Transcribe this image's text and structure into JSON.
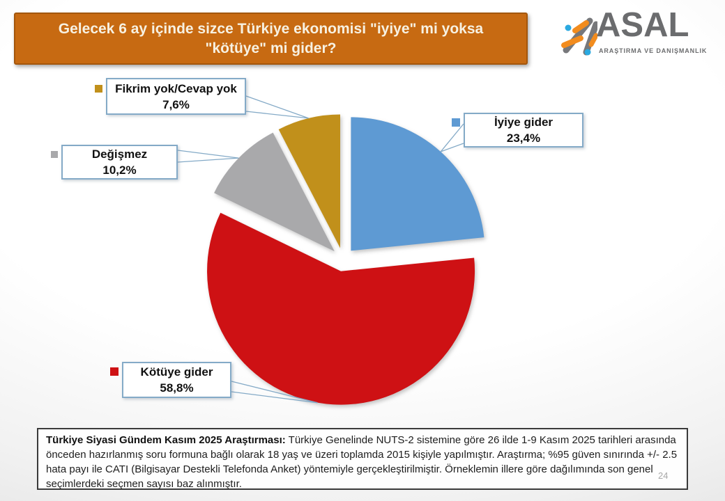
{
  "slide": {
    "title": "Gelecek 6 ay içinde sizce Türkiye ekonomisi \"iyiye\" mi yoksa \"kötüye\" mi gider?",
    "page_number": "24"
  },
  "logo": {
    "name": "ASAL",
    "subtitle": "ARAŞTIRMA VE DANIŞMANLIK",
    "colors": {
      "text_gray": "#6b6c6e",
      "mark_orange": "#f28c1e",
      "mark_blue": "#2ba9e0",
      "mark_gray": "#77787b"
    }
  },
  "chart_data": {
    "type": "pie",
    "title": "Gelecek 6 ay içinde sizce Türkiye ekonomisi \"iyiye\" mi yoksa \"kötüye\" mi gider?",
    "labels": [
      "İyiye gider",
      "Kötüye gider",
      "Değişmez",
      "Fikrim yok/Cevap yok"
    ],
    "values": [
      23.4,
      58.8,
      10.2,
      7.6
    ],
    "value_labels": [
      "23,4%",
      "58,8%",
      "10,2%",
      "7,6%"
    ],
    "colors": [
      "#5e9ad3",
      "#ce1114",
      "#a9a9ab",
      "#c1901b"
    ],
    "start_angle_deg": 0,
    "clockwise": true,
    "exploded": true,
    "legend_position": "callout-labels",
    "callout_border_color": "#84aac7"
  },
  "footnote": {
    "lead": "Türkiye Siyasi Gündem Kasım 2025 Araştırması:",
    "body": " Türkiye Genelinde NUTS-2 sistemine göre 26 ilde 1-9 Kasım 2025 tarihleri arasında önceden hazırlanmış soru formuna bağlı olarak 18 yaş ve üzeri toplamda 2015 kişiyle yapılmıştır. Araştırma; %95 güven sınırında +/- 2.5 hata payı ile CATI (Bilgisayar Destekli Telefonda Anket) yöntemiyle gerçekleştirilmiştir. Örneklemin illere göre dağılımında son genel seçimlerdeki seçmen sayısı baz alınmıştır."
  }
}
